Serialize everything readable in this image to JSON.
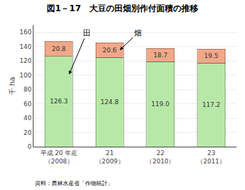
{
  "chart_data": {
    "type": "bar",
    "stacked": true,
    "title": "図1－17　大豆の田畑別作付面積の推移",
    "ylabel": "千 ha",
    "categories": [
      "平成 20 年産\n（2008）",
      "21\n（2009）",
      "22\n（2010）",
      "23\n（2011）"
    ],
    "series": [
      {
        "name": "田",
        "color": "#b8e8a8",
        "values": [
          126.3,
          124.8,
          119.0,
          117.2
        ],
        "value_labels": [
          "126.3",
          "124.8",
          "119.0",
          "117.2"
        ]
      },
      {
        "name": "畑",
        "color": "#f0a888",
        "values": [
          20.8,
          20.6,
          18.7,
          19.5
        ],
        "value_labels": [
          "20.8",
          "20.6",
          "18.7",
          "19.5"
        ]
      }
    ],
    "ylim": [
      0,
      170
    ],
    "yticks": [
      0,
      20,
      40,
      60,
      80,
      100,
      120,
      140,
      160
    ],
    "grid": true,
    "data_labels": true,
    "source": "資料：農林水産省「作物統計」"
  }
}
